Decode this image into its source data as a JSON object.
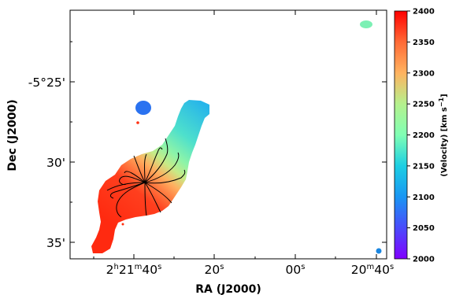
{
  "chart_data": {
    "type": "heatmap",
    "title": "",
    "xlabel": "RA (J2000)",
    "ylabel": "Dec (J2000)",
    "x_ticks": [
      {
        "h": "2",
        "m": "21",
        "s": "40"
      },
      {
        "s": "20"
      },
      {
        "s": "00"
      },
      {
        "m": "20",
        "s": "40"
      }
    ],
    "y_ticks": [
      "-5°25'",
      "30'",
      "35'"
    ],
    "colorbar": {
      "label": "(Velocity) [km s",
      "label_sup": "−1",
      "label_end": "]",
      "unit": "km s-1",
      "range": [
        2000,
        2400
      ],
      "ticks": [
        "2000",
        "2050",
        "2100",
        "2150",
        "2200",
        "2250",
        "2300",
        "2350",
        "2400"
      ],
      "colormap": "rainbow"
    },
    "contours": {
      "color": "#000000",
      "count": 14
    },
    "grid": false
  }
}
